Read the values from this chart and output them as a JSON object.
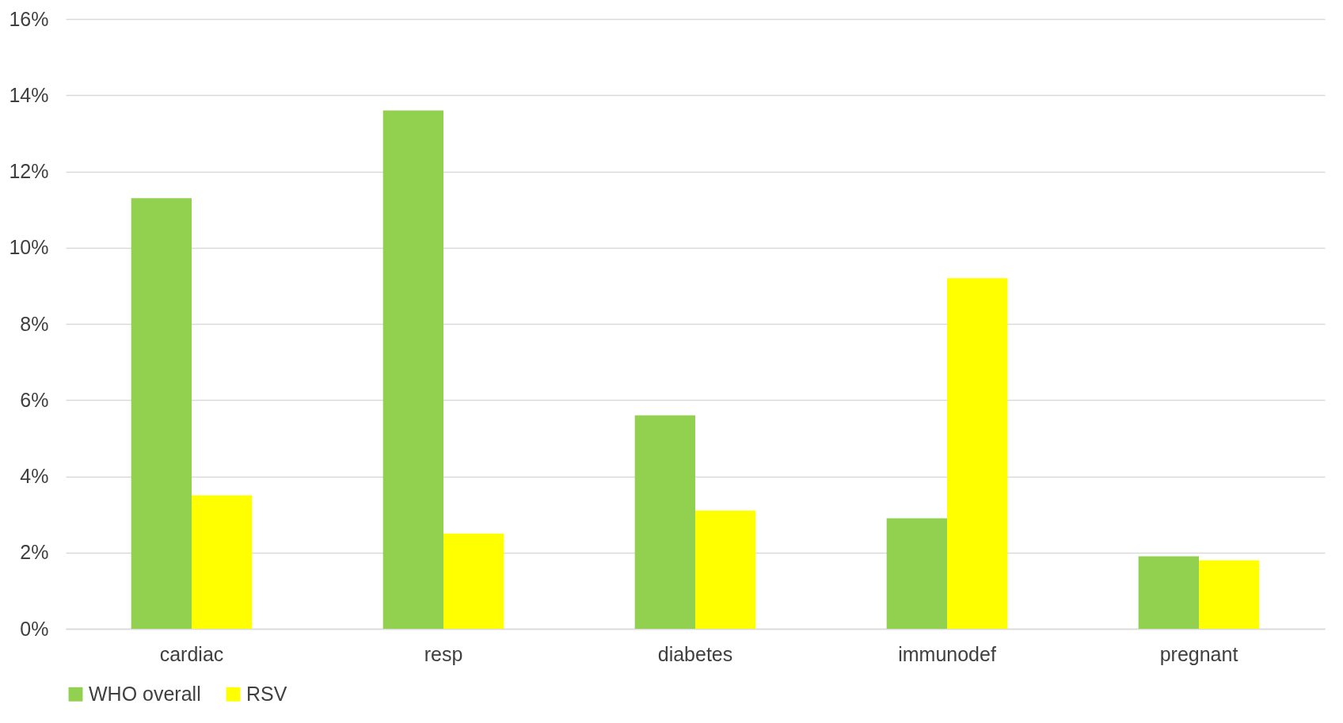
{
  "chart_data": {
    "type": "bar",
    "categories": [
      "cardiac",
      "resp",
      "diabetes",
      "immunodef",
      "pregnant"
    ],
    "series": [
      {
        "name": "WHO overall",
        "color": "#92d050",
        "values": [
          11.3,
          13.6,
          5.6,
          2.9,
          1.9
        ]
      },
      {
        "name": "RSV",
        "color": "#ffff00",
        "values": [
          3.5,
          2.5,
          3.1,
          9.2,
          1.8
        ]
      }
    ],
    "ylim": [
      0,
      16
    ],
    "yticks": [
      {
        "value": 0,
        "label": "0%"
      },
      {
        "value": 2,
        "label": "2%"
      },
      {
        "value": 4,
        "label": "4%"
      },
      {
        "value": 6,
        "label": "6%"
      },
      {
        "value": 8,
        "label": "8%"
      },
      {
        "value": 10,
        "label": "10%"
      },
      {
        "value": 12,
        "label": "12%"
      },
      {
        "value": 14,
        "label": "14%"
      },
      {
        "value": 16,
        "label": "16%"
      }
    ],
    "grid": "y",
    "legend": "bottom"
  }
}
